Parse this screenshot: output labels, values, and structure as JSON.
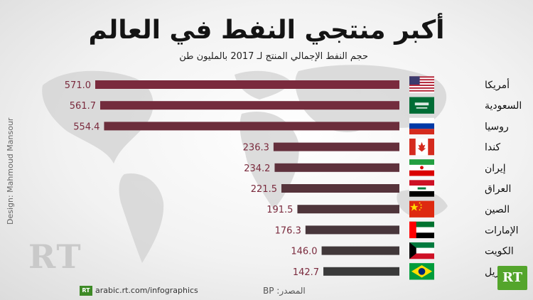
{
  "title": "أكبر منتجي النفط في العالم",
  "subtitle": "حجم النفط الإجمالي المنتج لـ 2017 بالمليون طن",
  "credit": "Design: Mahmoud Mansour",
  "watermark": "RT",
  "footer": {
    "url": "arabic.rt.com/infographics",
    "source": "المصدر: BP",
    "logo": "RT",
    "small_logo": "RT"
  },
  "colors": {
    "bar_top": "#7a2a3d",
    "bar_bottom": "#3a3a3a"
  },
  "chart_data": {
    "type": "bar",
    "orientation": "horizontal",
    "title": "أكبر منتجي النفط في العالم",
    "subtitle": "حجم النفط الإجمالي المنتج لـ 2017 بالمليون طن",
    "categories": [
      "أمريكا",
      "السعودية",
      "روسيا",
      "كندا",
      "إيران",
      "العراق",
      "الصين",
      "الإمارات",
      "الكويت",
      "البرازيل"
    ],
    "flags": [
      "us",
      "sa",
      "ru",
      "ca",
      "ir",
      "iq",
      "cn",
      "ae",
      "kw",
      "br"
    ],
    "values": [
      571.0,
      561.7,
      554.4,
      236.3,
      234.2,
      221.5,
      191.5,
      176.3,
      146.0,
      142.7
    ],
    "value_labels": [
      "571.0",
      "561.7",
      "554.4",
      "236.3",
      "234.2",
      "221.5",
      "191.5",
      "176.3",
      "146.0",
      "142.7"
    ],
    "xlim": [
      0,
      571.0
    ],
    "grid": false,
    "legend": "none"
  }
}
